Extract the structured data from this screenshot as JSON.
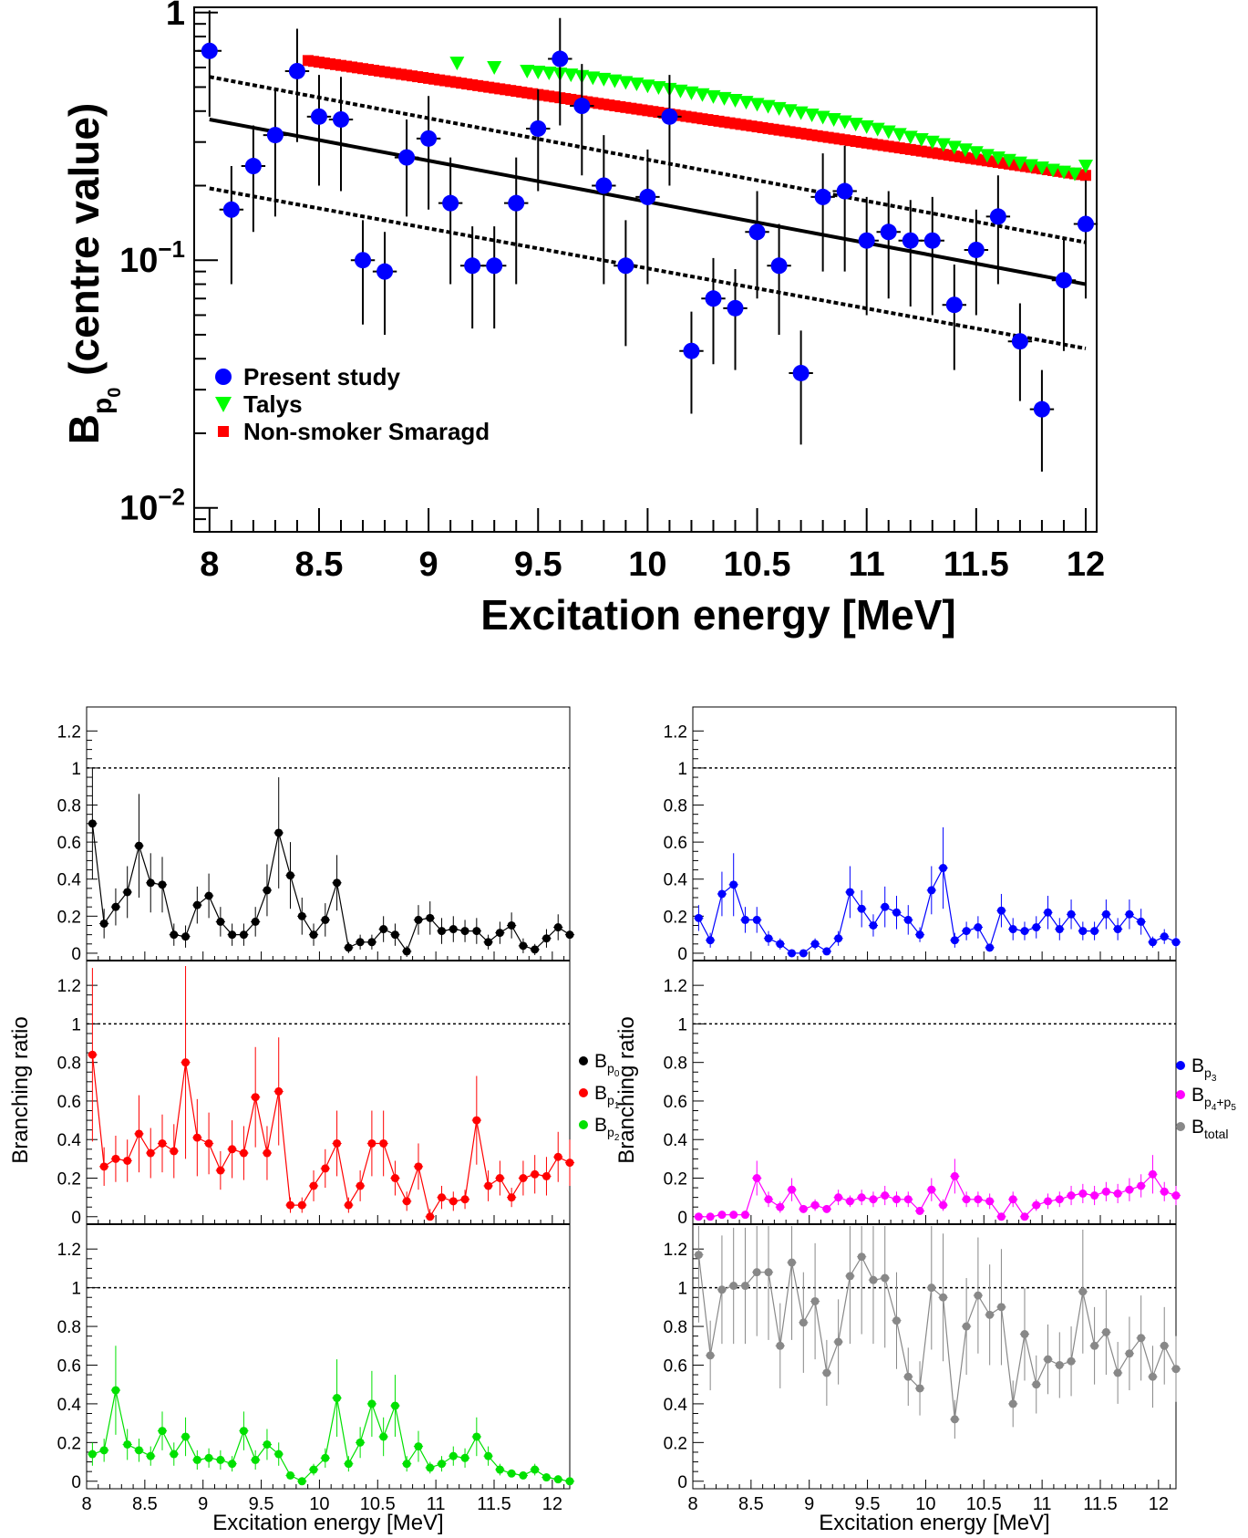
{
  "chart_data": [
    {
      "type": "scatter",
      "id": "top",
      "title": "",
      "xlabel": "Excitation energy [MeV]",
      "ylabel": {
        "base": "B",
        "sub": "p",
        "subsub": "0",
        "suffix": " (centre value)"
      },
      "xlim": [
        7.93,
        12.05
      ],
      "ylim": [
        0.008,
        1.05
      ],
      "yscale": "log",
      "xticks": [
        {
          "v": 8,
          "label": "8"
        },
        {
          "v": 8.5,
          "label": "8.5"
        },
        {
          "v": 9,
          "label": "9"
        },
        {
          "v": 9.5,
          "label": "9.5"
        },
        {
          "v": 10,
          "label": "10"
        },
        {
          "v": 10.5,
          "label": "10.5"
        },
        {
          "v": 11,
          "label": "11"
        },
        {
          "v": 11.5,
          "label": "11.5"
        },
        {
          "v": 12,
          "label": "12"
        }
      ],
      "yticks": [
        {
          "v": 1,
          "label": "1"
        },
        {
          "v": 0.1,
          "label": "10",
          "exp": "−1"
        },
        {
          "v": 0.01,
          "label": "10",
          "exp": "−2"
        }
      ],
      "legend": {
        "position": "bottom-left",
        "entries": [
          {
            "label": "Present study",
            "color": "#0000ff",
            "marker": "circle"
          },
          {
            "label": "Talys",
            "color": "#00ff00",
            "marker": "triangle-down"
          },
          {
            "label": "Non-smoker Smaragd",
            "color": "#ff0000",
            "marker": "square"
          }
        ]
      },
      "present_study": {
        "x": [
          8.0,
          8.1,
          8.2,
          8.3,
          8.4,
          8.5,
          8.6,
          8.7,
          8.8,
          8.9,
          9.0,
          9.1,
          9.2,
          9.3,
          9.4,
          9.5,
          9.6,
          9.7,
          9.8,
          9.9,
          10.0,
          10.1,
          10.2,
          10.3,
          10.4,
          10.5,
          10.6,
          10.7,
          10.8,
          10.9,
          11.0,
          11.1,
          11.2,
          11.3,
          11.4,
          11.5,
          11.6,
          11.7,
          11.8,
          11.9,
          12.0
        ],
        "y": [
          0.7,
          0.16,
          0.24,
          0.32,
          0.58,
          0.38,
          0.37,
          0.1,
          0.09,
          0.26,
          0.31,
          0.17,
          0.095,
          0.095,
          0.17,
          0.34,
          0.65,
          0.42,
          0.2,
          0.095,
          0.18,
          0.38,
          0.043,
          0.07,
          0.064,
          0.13,
          0.095,
          0.035,
          0.18,
          0.19,
          0.12,
          0.13,
          0.12,
          0.12,
          0.066,
          0.11,
          0.15,
          0.047,
          0.025,
          0.083,
          0.14
        ],
        "yerr": [
          0.32,
          0.08,
          0.11,
          0.17,
          0.28,
          0.18,
          0.18,
          0.045,
          0.04,
          0.11,
          0.15,
          0.09,
          0.042,
          0.042,
          0.09,
          0.15,
          0.3,
          0.2,
          0.12,
          0.05,
          0.1,
          0.18,
          0.019,
          0.032,
          0.028,
          0.06,
          0.045,
          0.017,
          0.09,
          0.1,
          0.06,
          0.06,
          0.055,
          0.06,
          0.03,
          0.05,
          0.07,
          0.02,
          0.011,
          0.04,
          0.07
        ],
        "xerr": 0.03
      },
      "talys": {
        "x": [
          9.13,
          9.3,
          9.45,
          9.5,
          9.55,
          9.6,
          9.65,
          9.7,
          9.75,
          9.8,
          9.85,
          9.9,
          9.95,
          10.0,
          10.05,
          10.1,
          10.15,
          10.2,
          10.25,
          10.3,
          10.35,
          10.4,
          10.45,
          10.5,
          10.55,
          10.6,
          10.65,
          10.7,
          10.75,
          10.8,
          10.85,
          10.9,
          10.95,
          11.0,
          11.05,
          11.1,
          11.15,
          11.2,
          11.25,
          11.3,
          11.35,
          11.4,
          11.45,
          11.5,
          11.55,
          11.6,
          11.65,
          11.7,
          11.75,
          11.8,
          11.85,
          11.9,
          11.95,
          12.0
        ],
        "y": [
          0.625,
          0.6,
          0.58,
          0.575,
          0.57,
          0.565,
          0.56,
          0.552,
          0.545,
          0.538,
          0.53,
          0.522,
          0.515,
          0.505,
          0.498,
          0.49,
          0.482,
          0.474,
          0.466,
          0.458,
          0.45,
          0.442,
          0.434,
          0.426,
          0.418,
          0.41,
          0.402,
          0.394,
          0.386,
          0.378,
          0.37,
          0.362,
          0.354,
          0.346,
          0.338,
          0.33,
          0.322,
          0.314,
          0.307,
          0.3,
          0.293,
          0.286,
          0.279,
          0.272,
          0.265,
          0.259,
          0.253,
          0.247,
          0.241,
          0.236,
          0.231,
          0.227,
          0.223,
          0.24
        ]
      },
      "smaragd": {
        "x_start": 8.45,
        "x_end": 12.0,
        "step": 0.025,
        "y_start": 0.64,
        "y_end": 0.22
      },
      "fit": {
        "x": [
          8.0,
          12.0
        ],
        "center": [
          0.37,
          0.08
        ],
        "upper": [
          0.55,
          0.118
        ],
        "lower": [
          0.195,
          0.044
        ]
      }
    },
    {
      "type": "line",
      "id": "panels",
      "common_xlabel": "Excitation energy [MeV]",
      "common_ylabel": "Branching ratio",
      "xlim": [
        8.0,
        12.15
      ],
      "ylim": [
        -0.02,
        1.3
      ],
      "xticks": [
        {
          "v": 8,
          "label": "8"
        },
        {
          "v": 8.5,
          "label": "8.5"
        },
        {
          "v": 9,
          "label": "9"
        },
        {
          "v": 9.5,
          "label": "9.5"
        },
        {
          "v": 10,
          "label": "10"
        },
        {
          "v": 10.5,
          "label": "10.5"
        },
        {
          "v": 11,
          "label": "11"
        },
        {
          "v": 11.5,
          "label": "11.5"
        },
        {
          "v": 12,
          "label": "12"
        }
      ],
      "yticks": [
        {
          "v": 0,
          "label": "0"
        },
        {
          "v": 0.2,
          "label": "0.2"
        },
        {
          "v": 0.4,
          "label": "0.4"
        },
        {
          "v": 0.6,
          "label": "0.6"
        },
        {
          "v": 0.8,
          "label": "0.8"
        },
        {
          "v": 1,
          "label": "1"
        },
        {
          "v": 1.2,
          "label": "1.2"
        }
      ],
      "reference_line": 1,
      "x": [
        8.05,
        8.15,
        8.25,
        8.35,
        8.45,
        8.55,
        8.65,
        8.75,
        8.85,
        8.95,
        9.05,
        9.15,
        9.25,
        9.35,
        9.45,
        9.55,
        9.65,
        9.75,
        9.85,
        9.95,
        10.05,
        10.15,
        10.25,
        10.35,
        10.45,
        10.55,
        10.65,
        10.75,
        10.85,
        10.95,
        11.05,
        11.15,
        11.25,
        11.35,
        11.45,
        11.55,
        11.65,
        11.75,
        11.85,
        11.95,
        12.05,
        12.15
      ],
      "legends": [
        {
          "side": "left",
          "entries": [
            {
              "base": "B",
              "sub": "p",
              "subsub": "0",
              "color": "#000000"
            },
            {
              "base": "B",
              "sub": "p",
              "subsub": "1",
              "color": "#ff0000"
            },
            {
              "base": "B",
              "sub": "p",
              "subsub": "2",
              "color": "#00e000"
            }
          ]
        },
        {
          "side": "right",
          "entries": [
            {
              "base": "B",
              "sub": "p",
              "subsub": "3",
              "color": "#0000ff"
            },
            {
              "base": "B",
              "sub": "p",
              "subsub": "4",
              "extra": "+p",
              "subsub2": "5",
              "color": "#ff00ff"
            },
            {
              "base": "B",
              "sub": "total",
              "color": "#888888"
            }
          ]
        }
      ],
      "series": [
        {
          "name": "Bp0",
          "panel": "left-1",
          "color": "#000000",
          "values": [
            0.7,
            0.16,
            0.25,
            0.33,
            0.58,
            0.38,
            0.37,
            0.1,
            0.09,
            0.26,
            0.31,
            0.17,
            0.1,
            0.1,
            0.17,
            0.34,
            0.65,
            0.42,
            0.2,
            0.1,
            0.18,
            0.38,
            0.03,
            0.06,
            0.06,
            0.13,
            0.1,
            0.01,
            0.18,
            0.19,
            0.12,
            0.13,
            0.12,
            0.12,
            0.06,
            0.11,
            0.15,
            0.04,
            0.02,
            0.08,
            0.14,
            0.1
          ],
          "errors": [
            0.3,
            0.08,
            0.1,
            0.14,
            0.28,
            0.16,
            0.15,
            0.06,
            0.06,
            0.1,
            0.12,
            0.08,
            0.06,
            0.06,
            0.08,
            0.14,
            0.3,
            0.18,
            0.1,
            0.06,
            0.09,
            0.15,
            0.03,
            0.04,
            0.04,
            0.07,
            0.06,
            0.03,
            0.08,
            0.09,
            0.07,
            0.07,
            0.06,
            0.07,
            0.04,
            0.06,
            0.07,
            0.04,
            0.03,
            0.05,
            0.07,
            0.06
          ]
        },
        {
          "name": "Bp1",
          "panel": "left-2",
          "color": "#ff0000",
          "values": [
            0.84,
            0.26,
            0.3,
            0.29,
            0.43,
            0.33,
            0.38,
            0.34,
            0.8,
            0.41,
            0.38,
            0.24,
            0.35,
            0.33,
            0.62,
            0.33,
            0.65,
            0.06,
            0.06,
            0.16,
            0.25,
            0.38,
            0.06,
            0.16,
            0.38,
            0.38,
            0.2,
            0.08,
            0.26,
            0.0,
            0.1,
            0.08,
            0.09,
            0.5,
            0.16,
            0.2,
            0.1,
            0.2,
            0.22,
            0.21,
            0.31,
            0.28
          ],
          "errors": [
            0.45,
            0.1,
            0.12,
            0.11,
            0.2,
            0.13,
            0.15,
            0.14,
            0.5,
            0.2,
            0.16,
            0.1,
            0.15,
            0.14,
            0.26,
            0.14,
            0.28,
            0.04,
            0.04,
            0.08,
            0.1,
            0.17,
            0.04,
            0.08,
            0.17,
            0.17,
            0.09,
            0.05,
            0.12,
            0.04,
            0.06,
            0.05,
            0.05,
            0.23,
            0.08,
            0.09,
            0.05,
            0.09,
            0.1,
            0.1,
            0.13,
            0.12
          ]
        },
        {
          "name": "Bp2",
          "panel": "left-3",
          "color": "#00e000",
          "values": [
            0.14,
            0.16,
            0.47,
            0.19,
            0.16,
            0.13,
            0.26,
            0.14,
            0.23,
            0.11,
            0.12,
            0.11,
            0.09,
            0.26,
            0.11,
            0.19,
            0.14,
            0.03,
            0.0,
            0.06,
            0.12,
            0.43,
            0.09,
            0.2,
            0.4,
            0.23,
            0.39,
            0.09,
            0.18,
            0.07,
            0.09,
            0.13,
            0.12,
            0.23,
            0.13,
            0.06,
            0.04,
            0.03,
            0.06,
            0.02,
            0.01,
            0.0
          ],
          "errors": [
            0.06,
            0.06,
            0.23,
            0.08,
            0.06,
            0.05,
            0.1,
            0.06,
            0.1,
            0.05,
            0.05,
            0.05,
            0.04,
            0.1,
            0.05,
            0.08,
            0.06,
            0.02,
            0.02,
            0.03,
            0.05,
            0.2,
            0.04,
            0.08,
            0.17,
            0.1,
            0.16,
            0.04,
            0.08,
            0.03,
            0.04,
            0.05,
            0.05,
            0.1,
            0.05,
            0.03,
            0.02,
            0.02,
            0.03,
            0.01,
            0.01,
            0.01
          ]
        },
        {
          "name": "Bp3",
          "panel": "right-1",
          "color": "#0000ff",
          "values": [
            0.19,
            0.07,
            0.32,
            0.37,
            0.18,
            0.18,
            0.08,
            0.05,
            0.0,
            0.0,
            0.05,
            0.01,
            0.08,
            0.33,
            0.24,
            0.15,
            0.25,
            0.22,
            0.18,
            0.1,
            0.34,
            0.46,
            0.07,
            0.12,
            0.14,
            0.03,
            0.23,
            0.13,
            0.12,
            0.14,
            0.22,
            0.13,
            0.21,
            0.12,
            0.12,
            0.21,
            0.13,
            0.21,
            0.17,
            0.06,
            0.09,
            0.06
          ],
          "errors": [
            0.07,
            0.04,
            0.12,
            0.17,
            0.07,
            0.07,
            0.04,
            0.03,
            0.02,
            0.02,
            0.03,
            0.01,
            0.04,
            0.14,
            0.1,
            0.06,
            0.11,
            0.09,
            0.08,
            0.04,
            0.13,
            0.22,
            0.04,
            0.05,
            0.06,
            0.02,
            0.09,
            0.06,
            0.05,
            0.06,
            0.09,
            0.06,
            0.08,
            0.05,
            0.05,
            0.08,
            0.06,
            0.08,
            0.07,
            0.03,
            0.04,
            0.03
          ]
        },
        {
          "name": "Bp4+p5",
          "panel": "right-2",
          "color": "#ff00ff",
          "values": [
            0.0,
            0.0,
            0.01,
            0.01,
            0.01,
            0.2,
            0.09,
            0.05,
            0.14,
            0.04,
            0.06,
            0.04,
            0.1,
            0.08,
            0.1,
            0.09,
            0.11,
            0.09,
            0.09,
            0.03,
            0.14,
            0.06,
            0.21,
            0.09,
            0.09,
            0.08,
            0.0,
            0.09,
            0.0,
            0.06,
            0.08,
            0.09,
            0.11,
            0.12,
            0.11,
            0.13,
            0.12,
            0.14,
            0.16,
            0.22,
            0.13,
            0.11
          ],
          "errors": [
            0.01,
            0.01,
            0.01,
            0.01,
            0.01,
            0.09,
            0.04,
            0.03,
            0.06,
            0.02,
            0.03,
            0.02,
            0.04,
            0.03,
            0.04,
            0.04,
            0.05,
            0.04,
            0.04,
            0.02,
            0.06,
            0.03,
            0.09,
            0.04,
            0.04,
            0.04,
            0.01,
            0.04,
            0.01,
            0.03,
            0.04,
            0.04,
            0.05,
            0.05,
            0.05,
            0.05,
            0.05,
            0.06,
            0.06,
            0.1,
            0.05,
            0.05
          ]
        },
        {
          "name": "Btotal",
          "panel": "right-3",
          "color": "#888888",
          "values": [
            1.17,
            0.65,
            0.99,
            1.01,
            1.01,
            1.08,
            1.08,
            0.7,
            1.13,
            0.82,
            0.93,
            0.56,
            0.72,
            1.06,
            1.16,
            1.04,
            1.05,
            0.83,
            0.54,
            0.48,
            1.0,
            0.95,
            0.32,
            0.8,
            0.96,
            0.86,
            0.9,
            0.4,
            0.76,
            0.5,
            0.63,
            0.6,
            0.62,
            0.98,
            0.7,
            0.77,
            0.56,
            0.66,
            0.74,
            0.54,
            0.7,
            0.58
          ],
          "errors": [
            0.35,
            0.18,
            0.28,
            0.3,
            0.3,
            0.33,
            0.35,
            0.22,
            0.4,
            0.26,
            0.3,
            0.17,
            0.22,
            0.35,
            0.4,
            0.33,
            0.36,
            0.25,
            0.15,
            0.14,
            0.32,
            0.33,
            0.1,
            0.25,
            0.3,
            0.26,
            0.3,
            0.12,
            0.24,
            0.15,
            0.18,
            0.17,
            0.18,
            0.32,
            0.2,
            0.22,
            0.16,
            0.19,
            0.22,
            0.16,
            0.2,
            0.17
          ]
        }
      ]
    }
  ]
}
